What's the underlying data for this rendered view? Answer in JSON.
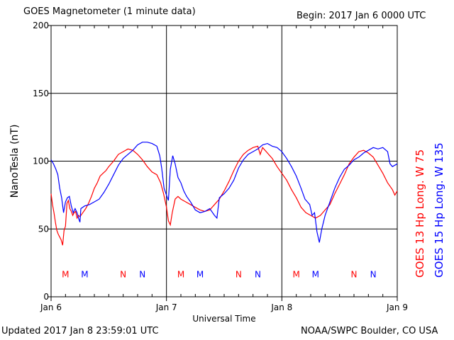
{
  "header": {
    "title": "GOES Magnetometer (1 minute data)",
    "begin": "Begin:  2017 Jan 6 0000 UTC"
  },
  "footer": {
    "updated": "Updated 2017 Jan  8 23:59:01 UTC",
    "credit": "NOAA/SWPC Boulder, CO USA"
  },
  "chart_data": {
    "type": "line",
    "title": "GOES Magnetometer (1 minute data)",
    "xlabel": "Universal Time",
    "ylabel": "NanoTesla (nT)",
    "xlim": [
      0,
      72
    ],
    "ylim": [
      0,
      200
    ],
    "x_unit": "hours since 2017 Jan 6 0000 UTC",
    "x_ticks": [
      {
        "x": 0,
        "label": "Jan 6"
      },
      {
        "x": 24,
        "label": "Jan 7"
      },
      {
        "x": 48,
        "label": "Jan 8"
      },
      {
        "x": 72,
        "label": "Jan 9"
      }
    ],
    "y_ticks": [
      0,
      50,
      100,
      150,
      200
    ],
    "grid": true,
    "series": [
      {
        "name": "GOES 13 Hp  Long. W 75",
        "color": "#ff0000",
        "points": [
          [
            0,
            76
          ],
          [
            0.3,
            68
          ],
          [
            0.6,
            62
          ],
          [
            0.9,
            55
          ],
          [
            1.2,
            49
          ],
          [
            1.5,
            46
          ],
          [
            1.8,
            44
          ],
          [
            2.1,
            42
          ],
          [
            2.4,
            38
          ],
          [
            2.7,
            49
          ],
          [
            3.0,
            52
          ],
          [
            3.3,
            69
          ],
          [
            3.6,
            71
          ],
          [
            3.9,
            65
          ],
          [
            4.2,
            63
          ],
          [
            4.5,
            60
          ],
          [
            4.8,
            62
          ],
          [
            5.1,
            63
          ],
          [
            5.4,
            58
          ],
          [
            5.7,
            60
          ],
          [
            6.0,
            59
          ],
          [
            6.6,
            62
          ],
          [
            7.2,
            65
          ],
          [
            7.8,
            69
          ],
          [
            8.4,
            74
          ],
          [
            9.0,
            80
          ],
          [
            9.6,
            84
          ],
          [
            10.2,
            89
          ],
          [
            10.8,
            91
          ],
          [
            11.4,
            93
          ],
          [
            12.0,
            96
          ],
          [
            13.0,
            100
          ],
          [
            14.0,
            105
          ],
          [
            15.0,
            107
          ],
          [
            16.0,
            109
          ],
          [
            17.0,
            108
          ],
          [
            18.0,
            105
          ],
          [
            19.0,
            101
          ],
          [
            20.0,
            96
          ],
          [
            21.0,
            92
          ],
          [
            22.0,
            90
          ],
          [
            22.8,
            84
          ],
          [
            23.4,
            76
          ],
          [
            24.0,
            66
          ],
          [
            24.4,
            56
          ],
          [
            24.8,
            53
          ],
          [
            25.2,
            62
          ],
          [
            25.8,
            72
          ],
          [
            26.4,
            74
          ],
          [
            27.0,
            72
          ],
          [
            28.0,
            70
          ],
          [
            29.0,
            68
          ],
          [
            30.0,
            66
          ],
          [
            31.0,
            64
          ],
          [
            32.0,
            63
          ],
          [
            33.0,
            64
          ],
          [
            34.0,
            68
          ],
          [
            35.0,
            72
          ],
          [
            36.0,
            78
          ],
          [
            37.0,
            85
          ],
          [
            38.0,
            93
          ],
          [
            39.0,
            100
          ],
          [
            40.0,
            105
          ],
          [
            41.0,
            108
          ],
          [
            42.0,
            110
          ],
          [
            43.0,
            111
          ],
          [
            43.5,
            105
          ],
          [
            44.0,
            110
          ],
          [
            45.0,
            106
          ],
          [
            46.0,
            102
          ],
          [
            47.0,
            96
          ],
          [
            48.0,
            91
          ],
          [
            49.0,
            86
          ],
          [
            50.0,
            79
          ],
          [
            51.0,
            73
          ],
          [
            52.0,
            66
          ],
          [
            53.0,
            62
          ],
          [
            54.0,
            60
          ],
          [
            55.0,
            58
          ],
          [
            56.0,
            60
          ],
          [
            57.0,
            64
          ],
          [
            58.0,
            68
          ],
          [
            59.0,
            76
          ],
          [
            60.0,
            83
          ],
          [
            61.0,
            90
          ],
          [
            62.0,
            98
          ],
          [
            63.0,
            103
          ],
          [
            64.0,
            107
          ],
          [
            65.0,
            108
          ],
          [
            66.0,
            106
          ],
          [
            67.0,
            103
          ],
          [
            68.0,
            97
          ],
          [
            69.0,
            91
          ],
          [
            70.0,
            84
          ],
          [
            71.0,
            79
          ],
          [
            71.5,
            75
          ],
          [
            72,
            78
          ]
        ]
      },
      {
        "name": "GOES 15 Hp  Long. W 135",
        "color": "#0000ff",
        "points": [
          [
            0,
            101
          ],
          [
            0.5,
            98
          ],
          [
            1.0,
            94
          ],
          [
            1.4,
            90
          ],
          [
            1.8,
            80
          ],
          [
            2.2,
            73
          ],
          [
            2.6,
            62
          ],
          [
            3.0,
            70
          ],
          [
            3.4,
            73
          ],
          [
            3.8,
            74
          ],
          [
            4.2,
            67
          ],
          [
            4.6,
            62
          ],
          [
            5.0,
            65
          ],
          [
            5.4,
            62
          ],
          [
            5.8,
            57
          ],
          [
            6.0,
            55
          ],
          [
            6.2,
            65
          ],
          [
            7.0,
            67
          ],
          [
            8.0,
            68
          ],
          [
            9.0,
            70
          ],
          [
            10.0,
            72
          ],
          [
            11.0,
            77
          ],
          [
            12.0,
            83
          ],
          [
            13.0,
            90
          ],
          [
            14.0,
            97
          ],
          [
            15.0,
            102
          ],
          [
            16.0,
            105
          ],
          [
            17.0,
            108
          ],
          [
            18.0,
            112
          ],
          [
            19.0,
            114
          ],
          [
            20.0,
            114
          ],
          [
            21.0,
            113
          ],
          [
            22.0,
            111
          ],
          [
            22.6,
            104
          ],
          [
            23.0,
            95
          ],
          [
            23.5,
            80
          ],
          [
            24.0,
            75
          ],
          [
            24.4,
            71
          ],
          [
            24.8,
            94
          ],
          [
            25.3,
            104
          ],
          [
            25.8,
            98
          ],
          [
            26.4,
            88
          ],
          [
            27.0,
            84
          ],
          [
            27.6,
            78
          ],
          [
            28.2,
            74
          ],
          [
            29.0,
            70
          ],
          [
            30.0,
            64
          ],
          [
            31.0,
            62
          ],
          [
            32.0,
            63
          ],
          [
            33.0,
            65
          ],
          [
            34.0,
            60
          ],
          [
            34.5,
            58
          ],
          [
            35.0,
            73
          ],
          [
            36.0,
            76
          ],
          [
            37.0,
            80
          ],
          [
            38.0,
            86
          ],
          [
            39.0,
            95
          ],
          [
            40.0,
            101
          ],
          [
            41.0,
            105
          ],
          [
            42.0,
            107
          ],
          [
            43.0,
            109
          ],
          [
            44.0,
            112
          ],
          [
            45.0,
            113
          ],
          [
            46.0,
            111
          ],
          [
            47.0,
            110
          ],
          [
            48.0,
            107
          ],
          [
            49.0,
            102
          ],
          [
            50.0,
            96
          ],
          [
            51.0,
            89
          ],
          [
            52.0,
            80
          ],
          [
            52.8,
            72
          ],
          [
            53.3,
            70
          ],
          [
            53.8,
            68
          ],
          [
            54.3,
            60
          ],
          [
            54.8,
            62
          ],
          [
            55.3,
            48
          ],
          [
            55.8,
            40
          ],
          [
            56.3,
            50
          ],
          [
            57.0,
            60
          ],
          [
            58.0,
            70
          ],
          [
            59.0,
            80
          ],
          [
            60.0,
            88
          ],
          [
            61.0,
            94
          ],
          [
            62.0,
            97
          ],
          [
            63.0,
            101
          ],
          [
            64.0,
            103
          ],
          [
            65.0,
            106
          ],
          [
            66.0,
            108
          ],
          [
            67.0,
            110
          ],
          [
            68.0,
            109
          ],
          [
            69.0,
            110
          ],
          [
            70.0,
            107
          ],
          [
            70.5,
            98
          ],
          [
            71.0,
            96
          ],
          [
            72,
            98
          ]
        ]
      }
    ],
    "annotations": [
      {
        "text": "M",
        "x": 3.0,
        "y": 17,
        "color": "#ff0000"
      },
      {
        "text": "M",
        "x": 7.0,
        "y": 17,
        "color": "#0000ff"
      },
      {
        "text": "N",
        "x": 15.0,
        "y": 17,
        "color": "#ff0000"
      },
      {
        "text": "N",
        "x": 19.0,
        "y": 17,
        "color": "#0000ff"
      },
      {
        "text": "M",
        "x": 27.0,
        "y": 17,
        "color": "#ff0000"
      },
      {
        "text": "M",
        "x": 31.0,
        "y": 17,
        "color": "#0000ff"
      },
      {
        "text": "N",
        "x": 39.0,
        "y": 17,
        "color": "#ff0000"
      },
      {
        "text": "N",
        "x": 43.0,
        "y": 17,
        "color": "#0000ff"
      },
      {
        "text": "M",
        "x": 51.0,
        "y": 17,
        "color": "#ff0000"
      },
      {
        "text": "M",
        "x": 55.0,
        "y": 17,
        "color": "#0000ff"
      },
      {
        "text": "N",
        "x": 63.0,
        "y": 17,
        "color": "#ff0000"
      },
      {
        "text": "N",
        "x": 67.0,
        "y": 17,
        "color": "#0000ff"
      }
    ]
  }
}
